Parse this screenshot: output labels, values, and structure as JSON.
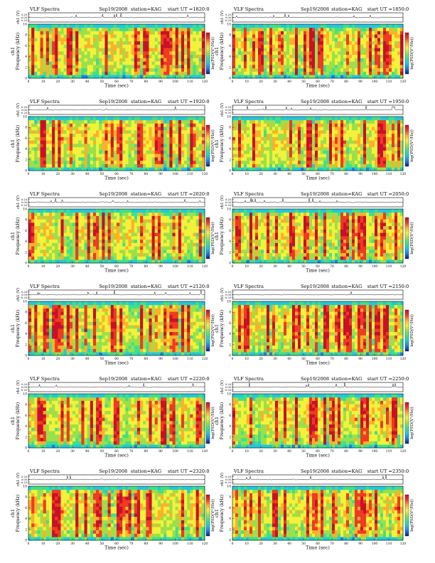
{
  "page": {
    "header_title": "VLF Spectra",
    "header_date": "Sep19/2008",
    "header_station": "station=KAG",
    "header_start_prefix": "start UT ="
  },
  "axes": {
    "xlabel": "Time (sec)",
    "ylabel_ts": "ch1 (V)",
    "ylabel_spec_line1": "ch1",
    "ylabel_spec_line2": "Frequency (kHz)",
    "colorbar_label": "log(PSD(V²/Hz))",
    "x_ticks": [
      "0",
      "10",
      "20",
      "30",
      "40",
      "50",
      "60",
      "70",
      "80",
      "90",
      "100",
      "110",
      "120"
    ],
    "y_ticks": [
      "0",
      "2",
      "4",
      "6",
      "8",
      "10"
    ],
    "ts_ticks": [
      "0.20",
      "0.00",
      "-0.20"
    ]
  },
  "colors": {
    "psd_scale": [
      "#0a1f8c",
      "#1f7fe6",
      "#23c9d8",
      "#3fe08a",
      "#9be04a",
      "#f2f23a",
      "#ffb02a",
      "#ef3a24",
      "#c8102a"
    ],
    "trace": "#000000"
  },
  "chart_data": [
    {
      "type": "heatmap",
      "title": "VLF Spectra",
      "date": "Sep19/2008",
      "station": "KAG",
      "start_ut": "1820:0",
      "xlabel": "Time (sec)",
      "ylabel": "Frequency (kHz)",
      "xlim": [
        0,
        120
      ],
      "ylim": [
        0,
        10
      ],
      "colorbar": "log(PSD(V²/Hz))"
    },
    {
      "type": "heatmap",
      "title": "VLF Spectra",
      "date": "Sep19/2008",
      "station": "KAG",
      "start_ut": "1850:0",
      "xlabel": "Time (sec)",
      "ylabel": "Frequency (kHz)",
      "xlim": [
        0,
        120
      ],
      "ylim": [
        0,
        10
      ],
      "colorbar": "log(PSD(V²/Hz))"
    },
    {
      "type": "heatmap",
      "title": "VLF Spectra",
      "date": "Sep19/2008",
      "station": "KAG",
      "start_ut": "1920:0",
      "xlabel": "Time (sec)",
      "ylabel": "Frequency (kHz)",
      "xlim": [
        0,
        120
      ],
      "ylim": [
        0,
        10
      ],
      "colorbar": "log(PSD(V²/Hz))"
    },
    {
      "type": "heatmap",
      "title": "VLF Spectra",
      "date": "Sep19/2008",
      "station": "KAG",
      "start_ut": "1950:0",
      "xlabel": "Time (sec)",
      "ylabel": "Frequency (kHz)",
      "xlim": [
        0,
        120
      ],
      "ylim": [
        0,
        10
      ],
      "colorbar": "log(PSD(V²/Hz))"
    },
    {
      "type": "heatmap",
      "title": "VLF Spectra",
      "date": "Sep19/2008",
      "station": "KAG",
      "start_ut": "2020:0",
      "xlabel": "Time (sec)",
      "ylabel": "Frequency (kHz)",
      "xlim": [
        0,
        120
      ],
      "ylim": [
        0,
        10
      ],
      "colorbar": "log(PSD(V²/Hz))"
    },
    {
      "type": "heatmap",
      "title": "VLF Spectra",
      "date": "Sep19/2008",
      "station": "KAG",
      "start_ut": "2050:0",
      "xlabel": "Time (sec)",
      "ylabel": "Frequency (kHz)",
      "xlim": [
        0,
        120
      ],
      "ylim": [
        0,
        10
      ],
      "colorbar": "log(PSD(V²/Hz))"
    },
    {
      "type": "heatmap",
      "title": "VLF Spectra",
      "date": "Sep19/2008",
      "station": "KAG",
      "start_ut": "2120:0",
      "xlabel": "Time (sec)",
      "ylabel": "Frequency (kHz)",
      "xlim": [
        0,
        120
      ],
      "ylim": [
        0,
        10
      ],
      "colorbar": "log(PSD(V²/Hz))"
    },
    {
      "type": "heatmap",
      "title": "VLF Spectra",
      "date": "Sep19/2008",
      "station": "KAG",
      "start_ut": "2150:0",
      "xlabel": "Time (sec)",
      "ylabel": "Frequency (kHz)",
      "xlim": [
        0,
        120
      ],
      "ylim": [
        0,
        10
      ],
      "colorbar": "log(PSD(V²/Hz))"
    },
    {
      "type": "heatmap",
      "title": "VLF Spectra",
      "date": "Sep19/2008",
      "station": "KAG",
      "start_ut": "2220:0",
      "xlabel": "Time (sec)",
      "ylabel": "Frequency (kHz)",
      "xlim": [
        0,
        120
      ],
      "ylim": [
        0,
        10
      ],
      "colorbar": "log(PSD(V²/Hz))"
    },
    {
      "type": "heatmap",
      "title": "VLF Spectra",
      "date": "Sep19/2008",
      "station": "KAG",
      "start_ut": "2250:0",
      "xlabel": "Time (sec)",
      "ylabel": "Frequency (kHz)",
      "xlim": [
        0,
        120
      ],
      "ylim": [
        0,
        10
      ],
      "colorbar": "log(PSD(V²/Hz))"
    },
    {
      "type": "heatmap",
      "title": "VLF Spectra",
      "date": "Sep19/2008",
      "station": "KAG",
      "start_ut": "2320:0",
      "xlabel": "Time (sec)",
      "ylabel": "Frequency (kHz)",
      "xlim": [
        0,
        120
      ],
      "ylim": [
        0,
        10
      ],
      "colorbar": "log(PSD(V²/Hz))"
    },
    {
      "type": "heatmap",
      "title": "VLF Spectra",
      "date": "Sep19/2008",
      "station": "KAG",
      "start_ut": "2350:0",
      "xlabel": "Time (sec)",
      "ylabel": "Frequency (kHz)",
      "xlim": [
        0,
        120
      ],
      "ylim": [
        0,
        10
      ],
      "colorbar": "log(PSD(V²/Hz))"
    }
  ]
}
